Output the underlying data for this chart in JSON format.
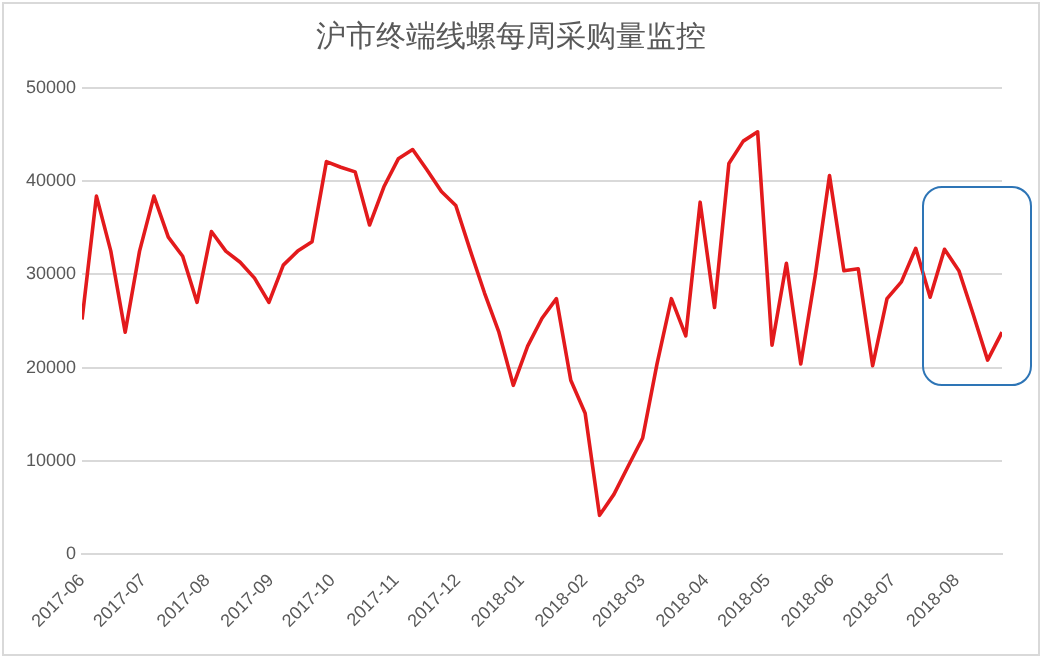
{
  "chart_data": {
    "type": "line",
    "title": "沪市终端线螺每周采购量监控",
    "x": [
      "2017-06-01",
      "2017-06-08",
      "2017-06-15",
      "2017-06-22",
      "2017-06-29",
      "2017-07-06",
      "2017-07-13",
      "2017-07-20",
      "2017-07-27",
      "2017-08-03",
      "2017-08-10",
      "2017-08-17",
      "2017-08-24",
      "2017-08-31",
      "2017-09-07",
      "2017-09-14",
      "2017-09-21",
      "2017-09-28",
      "2017-10-05",
      "2017-10-12",
      "2017-10-19",
      "2017-10-26",
      "2017-11-02",
      "2017-11-09",
      "2017-11-16",
      "2017-11-23",
      "2017-11-30",
      "2017-12-07",
      "2017-12-14",
      "2017-12-21",
      "2017-12-28",
      "2018-01-04",
      "2018-01-11",
      "2018-01-18",
      "2018-01-25",
      "2018-02-01",
      "2018-02-08",
      "2018-02-15",
      "2018-02-22",
      "2018-03-01",
      "2018-03-08",
      "2018-03-15",
      "2018-03-22",
      "2018-03-29",
      "2018-04-05",
      "2018-04-12",
      "2018-04-19",
      "2018-04-26",
      "2018-05-03",
      "2018-05-10",
      "2018-05-17",
      "2018-05-24",
      "2018-05-31",
      "2018-06-07",
      "2018-06-14",
      "2018-06-21",
      "2018-06-28",
      "2018-07-05",
      "2018-07-12",
      "2018-07-19",
      "2018-07-26",
      "2018-08-02",
      "2018-08-09",
      "2018-08-16",
      "2018-08-23"
    ],
    "series": [
      {
        "color": "#e31a1c",
        "values": [
          25150,
          38400,
          32500,
          23800,
          32500,
          38400,
          34000,
          31950,
          27000,
          34600,
          32500,
          31300,
          29600,
          27000,
          31000,
          32500,
          33500,
          42100,
          41500,
          41000,
          35300,
          39400,
          42400,
          43400,
          41200,
          38900,
          37400,
          32600,
          28000,
          23800,
          18100,
          22300,
          25300,
          27400,
          18650,
          15100,
          4150,
          6400,
          9450,
          12450,
          20400,
          27400,
          23400,
          37750,
          26450,
          41900,
          44300,
          45300,
          22400,
          31200,
          20400,
          29800,
          40600,
          30400,
          30600,
          20200,
          27400,
          29200,
          32800,
          27550,
          32700,
          30400,
          25700,
          20800,
          23800
        ]
      }
    ],
    "xlim": [
      "2017-06-01",
      "2018-08-23"
    ],
    "xticks": [
      {
        "value": "2017-06-01",
        "label": "2017-06"
      },
      {
        "value": "2017-07-01",
        "label": "2017-07"
      },
      {
        "value": "2017-08-01",
        "label": "2017-08"
      },
      {
        "value": "2017-09-01",
        "label": "2017-09"
      },
      {
        "value": "2017-10-01",
        "label": "2017-10"
      },
      {
        "value": "2017-11-01",
        "label": "2017-11"
      },
      {
        "value": "2017-12-01",
        "label": "2017-12"
      },
      {
        "value": "2018-01-01",
        "label": "2018-01"
      },
      {
        "value": "2018-02-01",
        "label": "2018-02"
      },
      {
        "value": "2018-03-01",
        "label": "2018-03"
      },
      {
        "value": "2018-04-01",
        "label": "2018-04"
      },
      {
        "value": "2018-05-01",
        "label": "2018-05"
      },
      {
        "value": "2018-06-01",
        "label": "2018-06"
      },
      {
        "value": "2018-07-01",
        "label": "2018-07"
      },
      {
        "value": "2018-08-01",
        "label": "2018-08"
      }
    ],
    "ylim": [
      0,
      50000
    ],
    "yticks": [
      0,
      10000,
      20000,
      30000,
      40000,
      50000
    ],
    "grid": "y",
    "marker": "none",
    "line_style": "solid"
  }
}
